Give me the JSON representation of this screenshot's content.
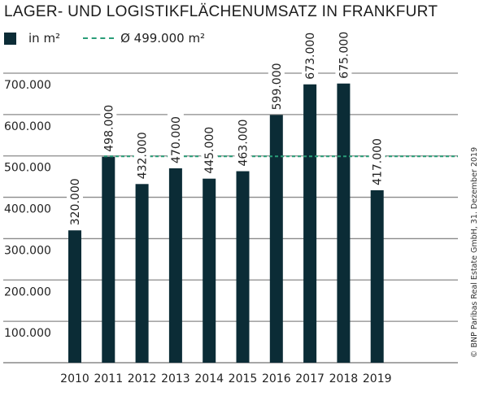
{
  "chart_data": {
    "type": "bar",
    "title": "LAGER- UND LOGISTIKFLÄCHENUMSATZ IN FRANKFURT",
    "legend": {
      "series_label": "in m²",
      "average_label": "Ø 499.000 m²",
      "placement": "top-left"
    },
    "categories": [
      "2010",
      "2011",
      "2012",
      "2013",
      "2014",
      "2015",
      "2016",
      "2017",
      "2018",
      "2019"
    ],
    "values": [
      320000,
      498000,
      432000,
      470000,
      445000,
      463000,
      599000,
      673000,
      675000,
      417000
    ],
    "data_labels": [
      "320.000",
      "498.000",
      "432.000",
      "470.000",
      "445.000",
      "463.000",
      "599.000",
      "673.000",
      "675.000",
      "417.000"
    ],
    "average": 499000,
    "ylim": [
      0,
      700000
    ],
    "yticks": [
      100000,
      200000,
      300000,
      400000,
      500000,
      600000,
      700000
    ],
    "ytick_labels": [
      "100.000",
      "200.000",
      "300.000",
      "400.000",
      "500.000",
      "600.000",
      "700.000"
    ],
    "grid": true,
    "xlabel": "",
    "ylabel": "",
    "colors": {
      "bar": "#0b2c36",
      "average": "#2a9d78",
      "grid": "#8a8a8a"
    }
  },
  "credit": "© BNP Paribas Real Estate GmbH, 31. Dezember 2019"
}
